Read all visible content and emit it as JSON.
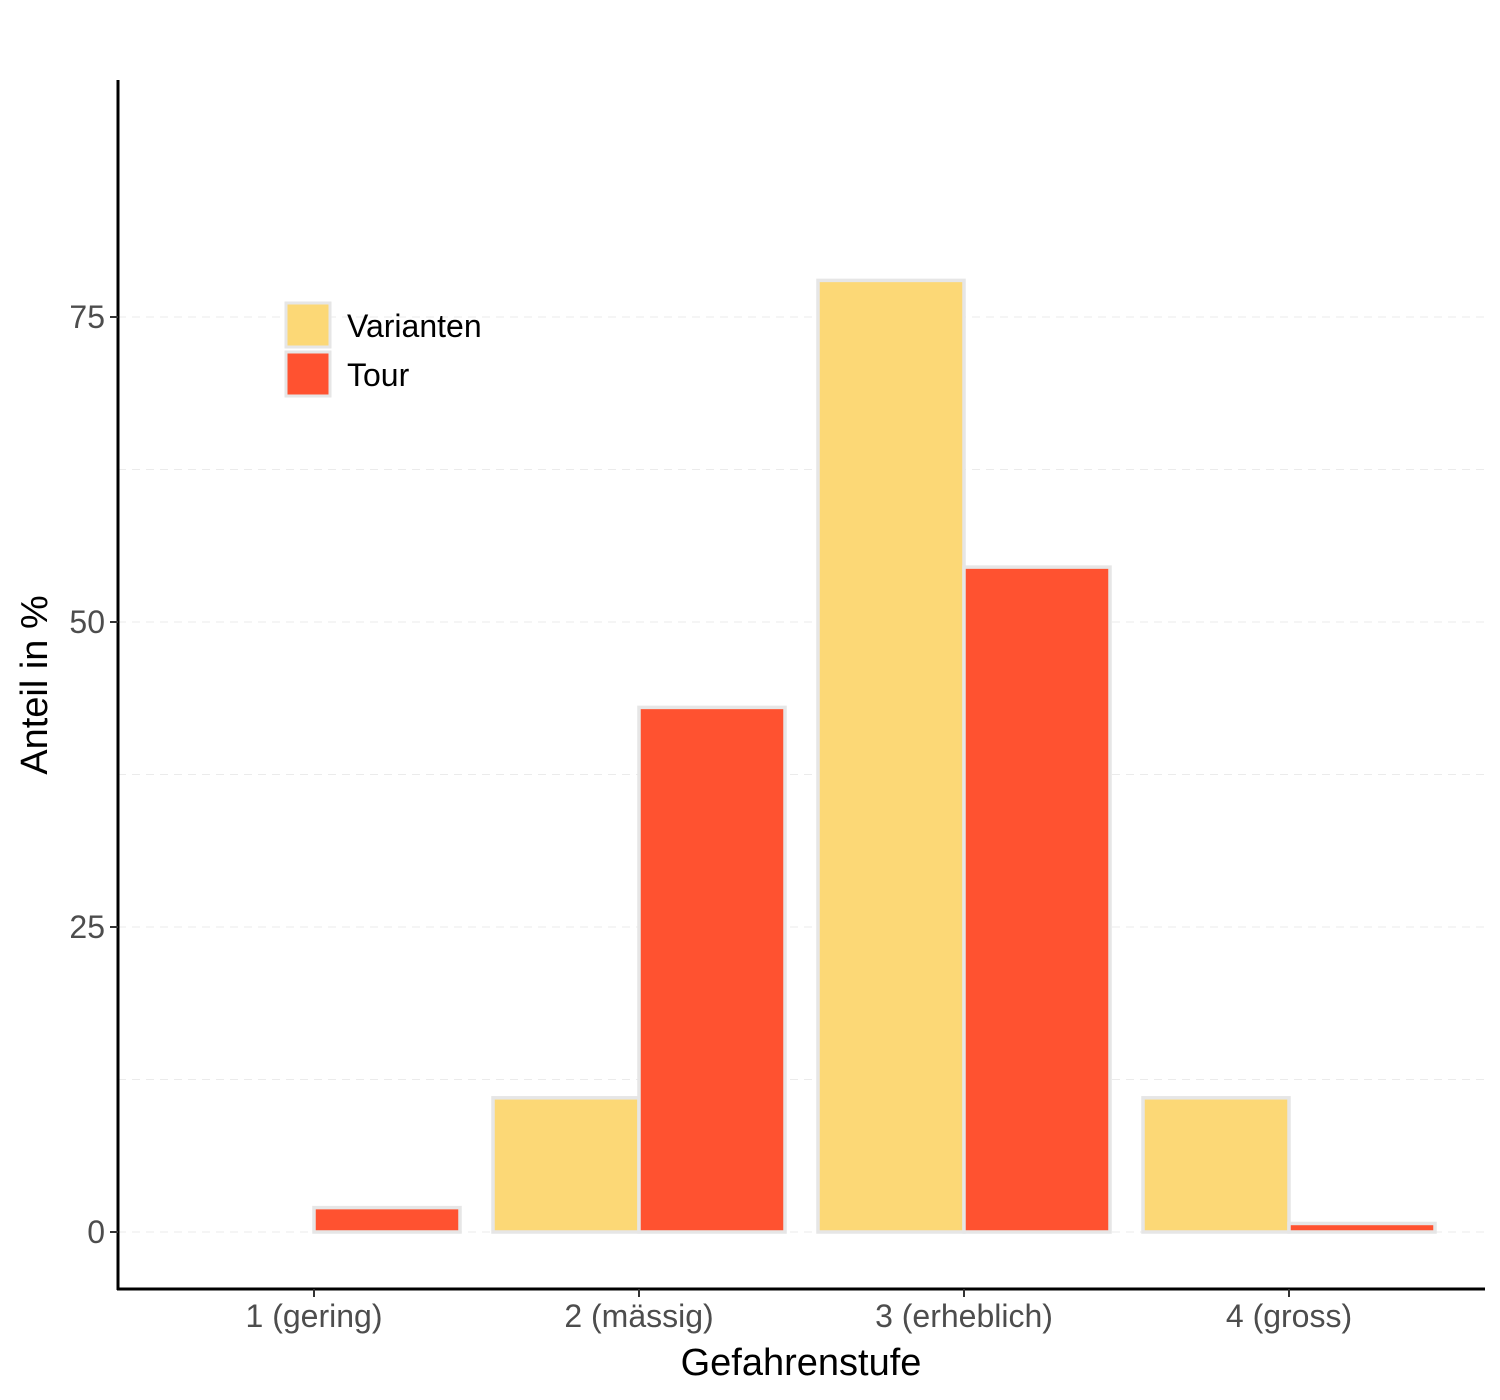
{
  "chart_data": {
    "type": "bar",
    "title": "",
    "xlabel": "Gefahrenstufe",
    "ylabel": "Anteil in %",
    "categories": [
      "1 (gering)",
      "2 (mässig)",
      "3 (erheblich)",
      "4 (gross)"
    ],
    "series": [
      {
        "name": "Varianten",
        "color": "#FCD876",
        "values": [
          0,
          11,
          78,
          11
        ]
      },
      {
        "name": "Tour",
        "color": "#FF5230",
        "values": [
          2,
          43,
          54.5,
          0.7
        ]
      }
    ],
    "ylim": [
      -4.5,
      95
    ],
    "yticks": [
      0,
      25,
      50,
      75
    ],
    "ytick_labels": [
      "0",
      "25",
      "50",
      "75"
    ],
    "grid": "horizontal-dashed",
    "legend": "top-left inside",
    "bar_outline": "#E6E6E6"
  }
}
